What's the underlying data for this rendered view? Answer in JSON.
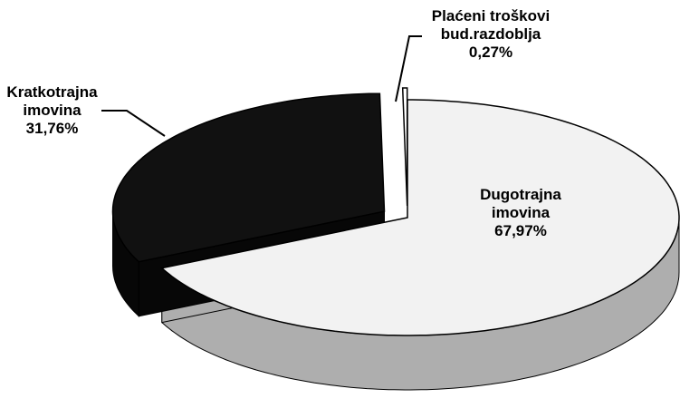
{
  "chart_data": {
    "type": "pie",
    "categories": [
      "Dugotrajna imovina",
      "Kratkotrajna imovina",
      "Plaćeni troškovi bud.razdoblja"
    ],
    "values": [
      67.97,
      31.76,
      0.27
    ],
    "value_labels": [
      "67,97%",
      "31,76%",
      "0,27%"
    ],
    "colors": [
      "#f2f2f2",
      "#111111",
      "#ffffff"
    ],
    "explode": [
      false,
      true,
      true
    ],
    "three_d": true
  }
}
